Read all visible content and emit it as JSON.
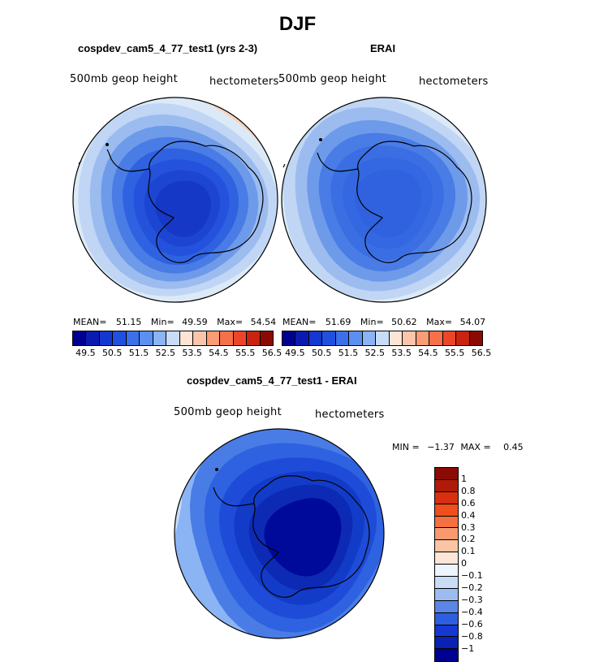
{
  "title": "DJF",
  "left_panel": {
    "title": "cospdev_cam5_4_77_test1 (yrs 2-3)",
    "variable": "500mb geop height",
    "units": "hectometers",
    "mean_label": "MEAN=",
    "mean": "51.15",
    "min_label": "Min=",
    "min": "49.59",
    "max_label": "Max=",
    "max": "54.54"
  },
  "right_panel": {
    "title": "ERAI",
    "variable": "500mb geop height",
    "units": "hectometers",
    "mean_label": "MEAN=",
    "mean": "51.69",
    "min_label": "Min=",
    "min": "50.62",
    "max_label": "Max=",
    "max": "54.07"
  },
  "diff_panel": {
    "title": "cospdev_cam5_4_77_test1 - ERAI",
    "variable": "500mb geop height",
    "units": "hectometers",
    "min_label": "MIN =",
    "min": "−1.37",
    "max_label": "MAX =",
    "max": "0.45"
  },
  "abs_colorbar": {
    "colors": [
      "#000090",
      "#0a1cb0",
      "#1438d0",
      "#2050e0",
      "#3a70ea",
      "#5a90f0",
      "#8ab4f4",
      "#c8dcf8",
      "#fde4d4",
      "#fcc4a8",
      "#fa9c74",
      "#f6704a",
      "#ec4628",
      "#c82410",
      "#8c0a04"
    ],
    "labels": [
      "49.5",
      "50.5",
      "51.5",
      "52.5",
      "53.5",
      "54.5",
      "55.5",
      "56.5"
    ]
  },
  "diff_colorbar": {
    "colors": [
      "#8c0a04",
      "#b01a08",
      "#d8300e",
      "#f04e1c",
      "#f47040",
      "#f89a70",
      "#fbc4a4",
      "#fde6d8",
      "#eef4fb",
      "#c8dcf6",
      "#9cbcf0",
      "#5a86e6",
      "#2e5fe0",
      "#1438d0",
      "#0a22b4",
      "#000090"
    ],
    "labels": [
      "1",
      "0.8",
      "0.6",
      "0.4",
      "0.3",
      "0.2",
      "0.1",
      "0",
      "−0.1",
      "−0.2",
      "−0.3",
      "−0.4",
      "−0.6",
      "−0.8",
      "−1"
    ]
  },
  "map_fields": {
    "left": [
      "#fce8dc",
      "#fbd2bc",
      "#dceaf8",
      "#c0d6f4",
      "#9cbcf0",
      "#6e9aea",
      "#4a7ce6",
      "#2e62e0",
      "#2452dc",
      "#1c46d2",
      "#1638c6"
    ],
    "right": [
      "#fce8dc",
      "#dceaf8",
      "#c0d6f4",
      "#9cbcf0",
      "#6e9aea",
      "#4a7ce6",
      "#3a6ee2",
      "#3468e2",
      "#3062e0"
    ],
    "diff": [
      "#8ab4f4",
      "#4a7ce6",
      "#2e62e0",
      "#1e4cd8",
      "#123cc8",
      "#0c2ab4",
      "#000a9a"
    ]
  }
}
